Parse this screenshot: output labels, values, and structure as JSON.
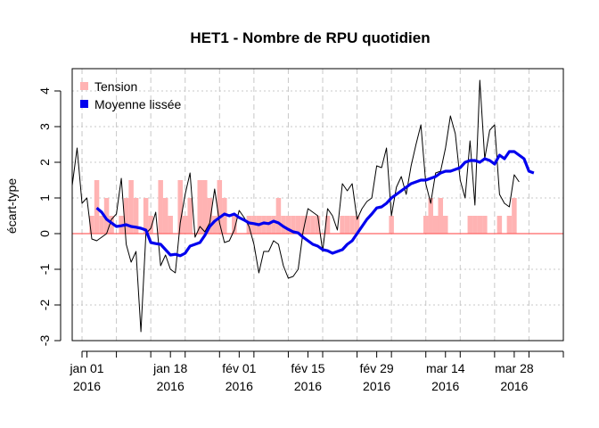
{
  "chart_data": {
    "type": "line",
    "title": "HET1 - Nombre de RPU quotidien",
    "ylabel": "écart-type",
    "xlabel": "",
    "x_start": "2015-12-29",
    "x_end": "2016-04-07",
    "ylim": [
      -3,
      4.5
    ],
    "y_ticks": [
      -3,
      -2,
      -1,
      0,
      1,
      2,
      3,
      4
    ],
    "x_ticks": [
      {
        "date": "2016-01-01",
        "label1": "jan 01",
        "label2": "2016"
      },
      {
        "date": "2016-01-18",
        "label1": "jan 18",
        "label2": "2016"
      },
      {
        "date": "2016-02-01",
        "label1": "fév 01",
        "label2": "2016"
      },
      {
        "date": "2016-02-15",
        "label1": "fév 15",
        "label2": "2016"
      },
      {
        "date": "2016-02-29",
        "label1": "fév 29",
        "label2": "2016"
      },
      {
        "date": "2016-03-14",
        "label1": "mar 14",
        "label2": "2016"
      },
      {
        "date": "2016-03-28",
        "label1": "mar 28",
        "label2": "2016"
      }
    ],
    "grid": true,
    "reference_line": 0,
    "legend": {
      "position": "top-left",
      "items": [
        {
          "label": "Tension",
          "color": "#ffb3b3",
          "marker": "square"
        },
        {
          "label": "Moyenne lissée",
          "color": "#0000ee",
          "marker": "square"
        }
      ]
    },
    "colors": {
      "daily": "#000000",
      "smooth": "#0000ee",
      "tension": "#ffb3b3",
      "zero_line": "#ff6666"
    },
    "series": [
      {
        "name": "daily",
        "start": "2015-12-29",
        "values": [
          1.35,
          2.4,
          0.85,
          1.0,
          -0.15,
          -0.2,
          -0.1,
          0.0,
          0.4,
          0.55,
          1.55,
          -0.3,
          -0.8,
          -0.5,
          -2.75,
          0.0,
          0.15,
          0.6,
          -0.9,
          -0.6,
          -1.0,
          -1.1,
          0.3,
          1.1,
          1.7,
          -0.1,
          0.2,
          0.05,
          0.3,
          1.25,
          0.3,
          -0.25,
          -0.2,
          0.1,
          0.65,
          0.45,
          0.2,
          -0.3,
          -1.1,
          -0.5,
          -0.5,
          -0.2,
          -0.3,
          -0.9,
          -1.25,
          -1.2,
          -1.0,
          0.05,
          0.7,
          0.6,
          0.5,
          -0.5,
          0.7,
          0.5,
          0.1,
          1.4,
          1.2,
          1.4,
          0.4,
          0.7,
          0.9,
          1.0,
          1.9,
          1.85,
          2.4,
          0.5,
          1.3,
          1.6,
          1.1,
          1.9,
          2.5,
          3.05,
          1.4,
          0.85,
          1.7,
          1.75,
          2.4,
          3.3,
          2.8,
          1.5,
          1.0,
          2.6,
          0.8,
          4.3,
          2.1,
          2.9,
          3.05,
          1.1,
          0.85,
          0.75,
          1.65,
          1.45
        ]
      },
      {
        "name": "smooth",
        "start": "2016-01-03",
        "values": [
          0.72,
          0.6,
          0.4,
          0.3,
          0.2,
          0.22,
          0.25,
          0.2,
          0.18,
          0.15,
          0.1,
          -0.25,
          -0.28,
          -0.3,
          -0.45,
          -0.6,
          -0.58,
          -0.62,
          -0.55,
          -0.35,
          -0.3,
          -0.25,
          -0.05,
          0.2,
          0.35,
          0.45,
          0.55,
          0.5,
          0.55,
          0.45,
          0.38,
          0.3,
          0.28,
          0.25,
          0.3,
          0.28,
          0.35,
          0.3,
          0.2,
          0.12,
          0.05,
          0.02,
          -0.1,
          -0.2,
          -0.3,
          -0.35,
          -0.45,
          -0.48,
          -0.55,
          -0.5,
          -0.45,
          -0.3,
          -0.2,
          0.0,
          0.2,
          0.4,
          0.55,
          0.72,
          0.75,
          0.85,
          1.0,
          1.1,
          1.2,
          1.3,
          1.4,
          1.45,
          1.5,
          1.5,
          1.55,
          1.6,
          1.7,
          1.75,
          1.75,
          1.8,
          1.85,
          2.0,
          2.05,
          2.05,
          2.0,
          2.1,
          2.05,
          1.95,
          2.2,
          2.1,
          2.3,
          2.3,
          2.2,
          2.1,
          1.75,
          1.7
        ]
      }
    ],
    "tension_bars": {
      "start": "2015-12-29",
      "values": [
        0,
        0,
        0,
        0,
        0.5,
        1.5,
        0.5,
        1.0,
        0.5,
        0,
        0.5,
        1.0,
        1.5,
        1.0,
        0,
        1.0,
        0.5,
        0,
        1.5,
        1.0,
        0.5,
        0,
        1.5,
        0.5,
        1.0,
        0,
        1.5,
        1.5,
        1.0,
        0.5,
        1.5,
        1.0,
        0,
        0.5,
        0,
        0,
        0.5,
        0.5,
        0.5,
        0.5,
        0.5,
        0.5,
        1.0,
        0.5,
        0.5,
        0.5,
        0.5,
        0.5,
        0.5,
        0.5,
        0.5,
        0,
        0.5,
        0,
        0,
        0.5,
        0.5,
        0.5,
        0.5,
        0,
        0,
        0,
        0,
        0,
        0,
        0.5,
        0,
        0,
        0,
        0,
        0,
        0,
        0.5,
        1.0,
        0.5,
        1.0,
        0.5,
        0,
        0,
        0,
        0,
        0.5,
        0.5,
        0.5,
        0.5,
        0,
        0,
        0.5,
        0,
        0.5,
        1.0,
        0,
        0
      ]
    }
  }
}
